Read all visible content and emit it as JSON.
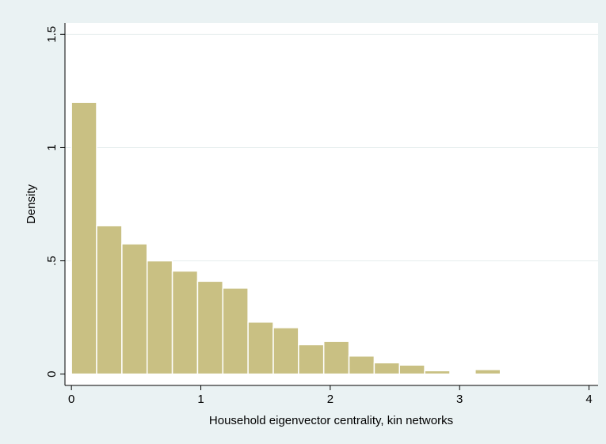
{
  "chart_data": {
    "type": "bar",
    "subtype": "histogram",
    "title": "",
    "xlabel": "Household eigenvector centrality, kin networks",
    "ylabel": "Density",
    "xlim": [
      -0.05,
      4.07
    ],
    "ylim": [
      -0.05,
      1.55
    ],
    "xticks": [
      0,
      1,
      2,
      3,
      4
    ],
    "xtick_labels": [
      "0",
      "1",
      "2",
      "3",
      "4"
    ],
    "yticks": [
      0,
      0.5,
      1,
      1.5
    ],
    "ytick_labels": [
      "0",
      ".5",
      "1",
      "1.5"
    ],
    "grid": "horizontal",
    "legend": "none",
    "bin_width": 0.195,
    "bin_starts": [
      0.0,
      0.195,
      0.39,
      0.585,
      0.78,
      0.975,
      1.17,
      1.365,
      1.56,
      1.755,
      1.95,
      2.145,
      2.34,
      2.535,
      2.73,
      2.925,
      3.12,
      3.315,
      3.51,
      3.705
    ],
    "values": [
      1.2,
      0.655,
      0.575,
      0.5,
      0.455,
      0.41,
      0.38,
      0.23,
      0.205,
      0.13,
      0.145,
      0.08,
      0.05,
      0.04,
      0.015,
      0.0,
      0.02,
      0.0,
      0.0,
      0.005
    ],
    "colors": {
      "background": "#eaf2f3",
      "plot_background": "#ffffff",
      "bar_fill": "#c9c083",
      "bar_edge": "#ffffff",
      "gridline": "#e6eeee",
      "axis": "#000000"
    }
  }
}
